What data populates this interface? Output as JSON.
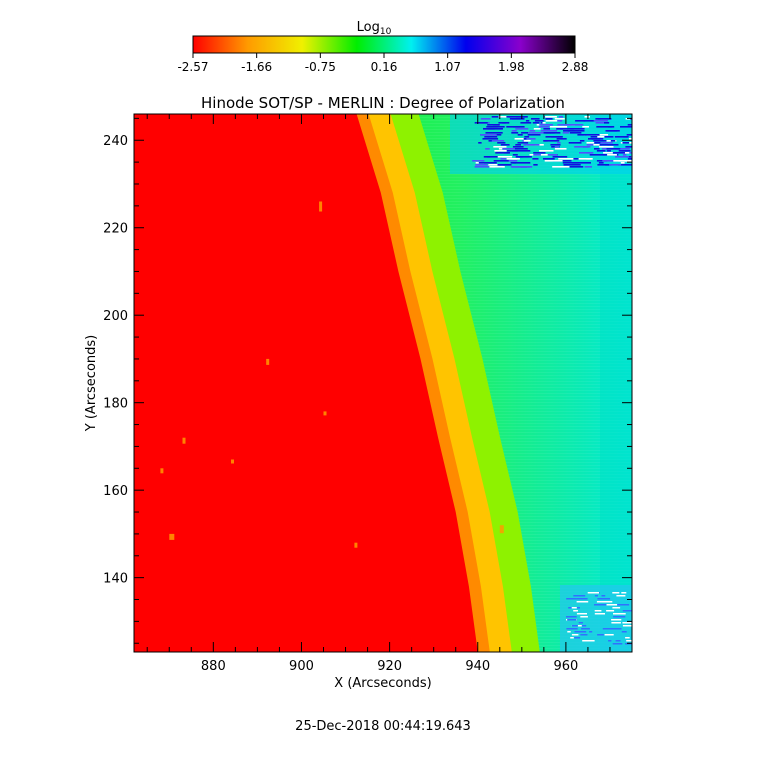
{
  "chart_data": {
    "type": "heatmap",
    "title": "Hinode SOT/SP - MERLIN : Degree of Polarization",
    "xlabel": "X (Arcseconds)",
    "ylabel": "Y (Arcseconds)",
    "xlim": [
      862,
      975
    ],
    "ylim": [
      123,
      246
    ],
    "x_ticks": [
      880,
      900,
      920,
      940,
      960
    ],
    "y_ticks": [
      140,
      160,
      180,
      200,
      220,
      240
    ],
    "grid": false,
    "colorbar": {
      "label_main": "Log",
      "label_sub": "10",
      "range": [
        -2.57,
        2.88
      ],
      "ticks": [
        "-2.57",
        "-1.66",
        "-0.75",
        "0.16",
        "1.07",
        "1.98",
        "2.88"
      ],
      "placement": "top",
      "colormap": [
        "#ff0000",
        "#ff9a00",
        "#f0f000",
        "#00ee00",
        "#00f0f0",
        "#0000ee",
        "#8a00cc",
        "#000000"
      ]
    },
    "limb_edge": [
      [
        912.5,
        246
      ],
      [
        918,
        228
      ],
      [
        922,
        210
      ],
      [
        927,
        190
      ],
      [
        931,
        172
      ],
      [
        935,
        155
      ],
      [
        938,
        138
      ],
      [
        940,
        123
      ]
    ],
    "regions": {
      "disk_value": -2.57,
      "limb_band_value": -1.2,
      "near_limb_value": -0.4,
      "off_limb_value": 0.2,
      "outer_edge_value": 1.2
    }
  },
  "timestamp": "25-Dec-2018 00:44:19.643"
}
